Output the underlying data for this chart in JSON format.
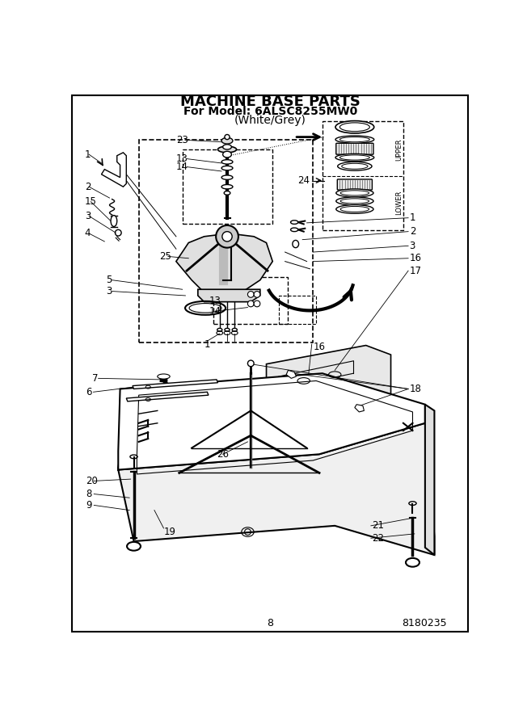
{
  "title_line1": "MACHINE BASE PARTS",
  "title_line2": "For Model: 6ALSC8255MW0",
  "title_line3": "(White/Grey)",
  "page_number": "8",
  "doc_number": "8180235",
  "bg_color": "#ffffff",
  "upper_label": "UPPER",
  "lower_label": "LOWER",
  "title_fontsize": 13,
  "subtitle_fontsize": 10,
  "label_fontsize": 8.5,
  "footer_fontsize": 9
}
